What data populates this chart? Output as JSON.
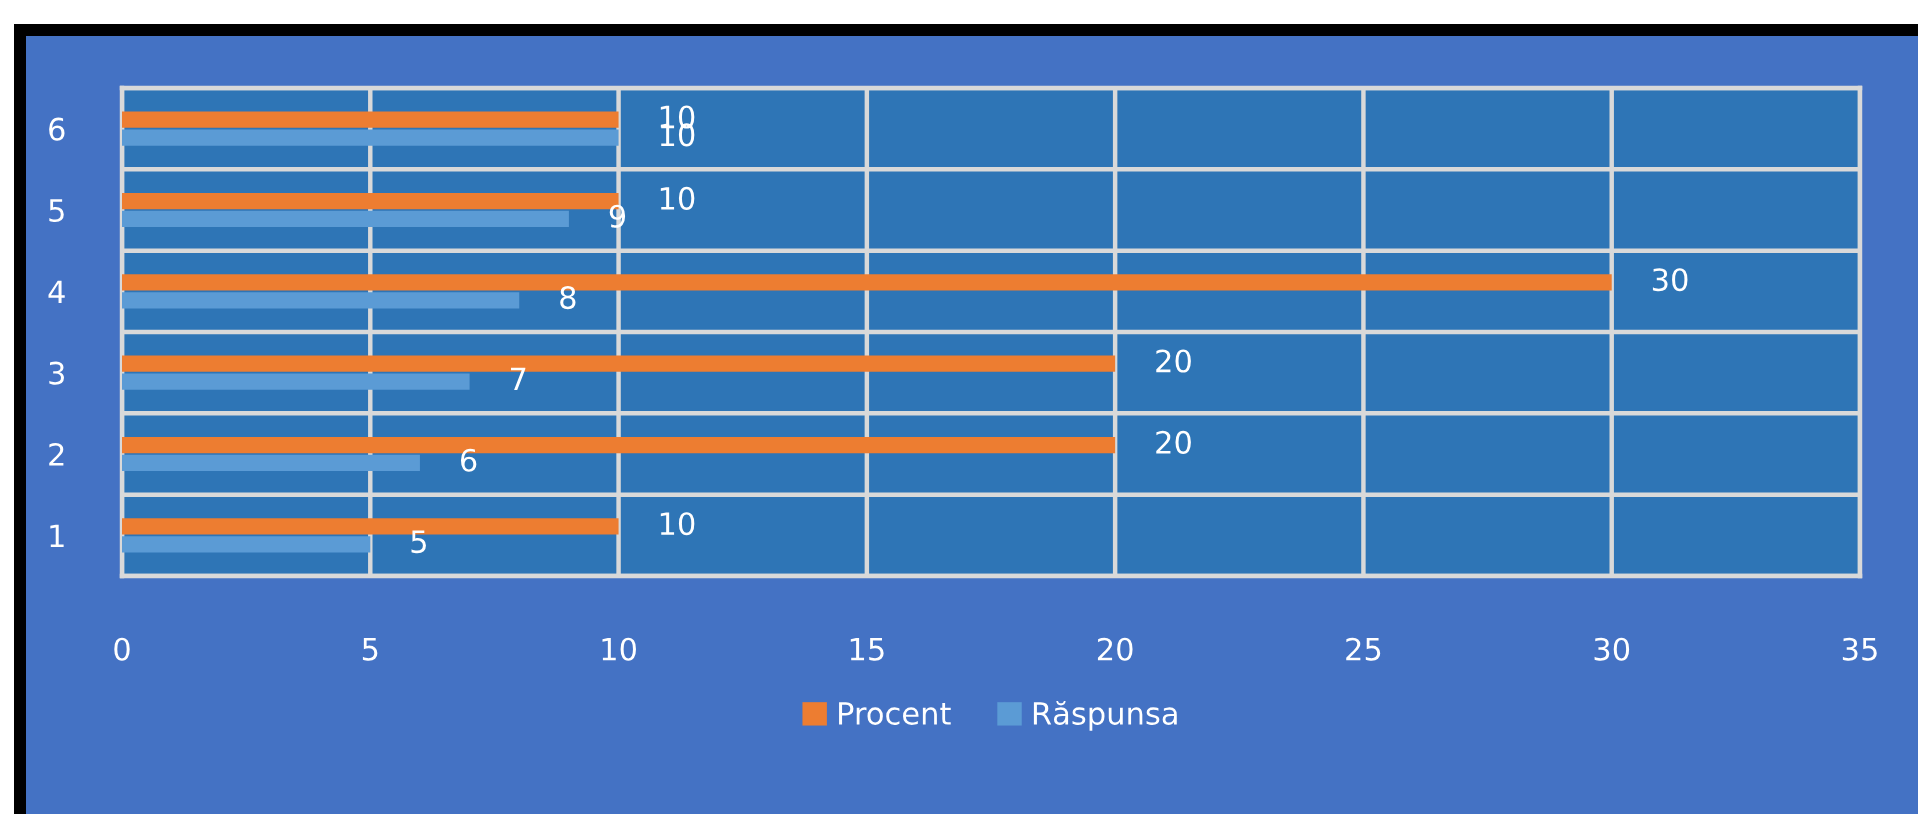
{
  "chart_data": {
    "type": "bar",
    "orientation": "horizontal",
    "categories": [
      "6",
      "5",
      "4",
      "3",
      "2",
      "1"
    ],
    "series": [
      {
        "name": "Procent",
        "color": "#ed7d31",
        "values": [
          10,
          10,
          30,
          20,
          20,
          10
        ]
      },
      {
        "name": "Răspunsa",
        "color": "#5b9bd5",
        "values": [
          10,
          9,
          8,
          7,
          6,
          5
        ]
      }
    ],
    "xlim": [
      0,
      35
    ],
    "xticks": [
      0,
      5,
      10,
      15,
      20,
      25,
      30,
      35
    ],
    "grid": true,
    "legend": "bottom",
    "data_labels": true
  }
}
